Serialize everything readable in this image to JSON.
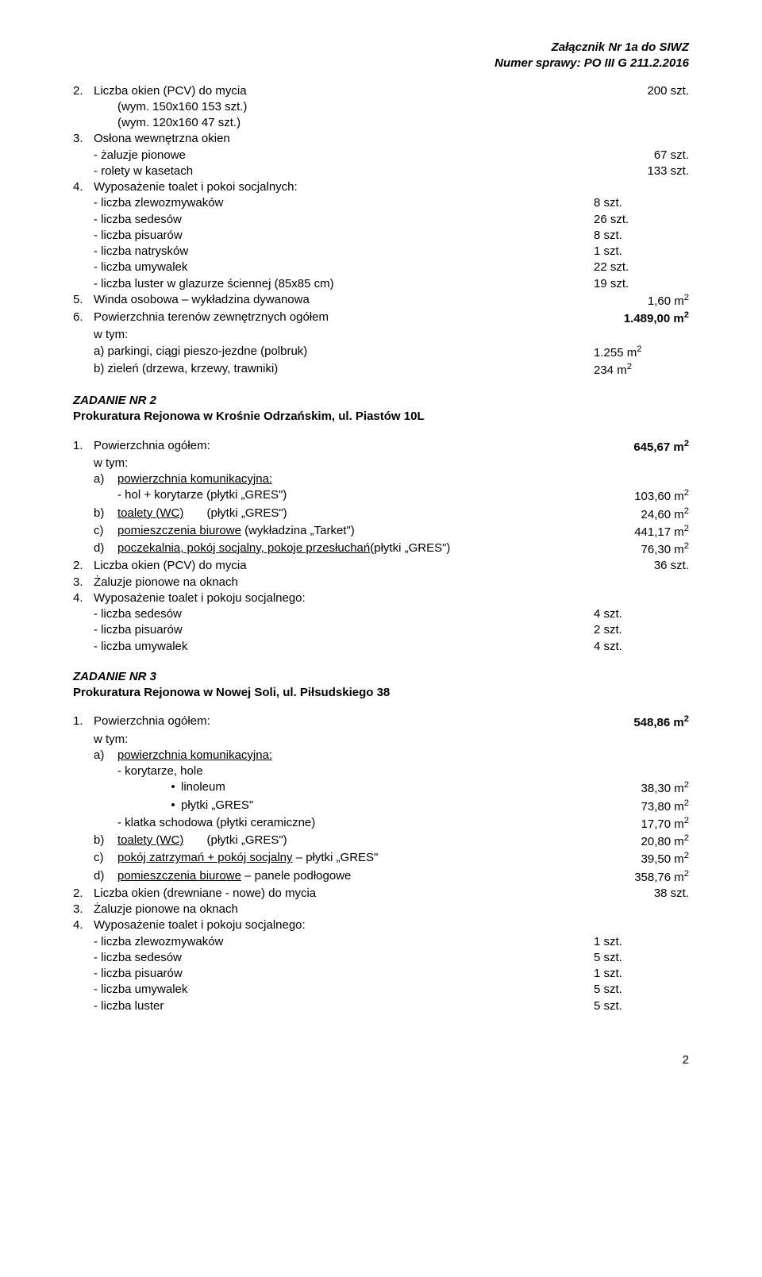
{
  "header": {
    "line1": "Załącznik Nr 1a do SIWZ",
    "line2": "Numer sprawy: PO III G 211.2.2016"
  },
  "s1": {
    "item2_txt": "Liczba okien (PCV) do mycia",
    "item2_val": "200 szt.",
    "item2_sub1": "(wym. 150x160 153 szt.)",
    "item2_sub2": "(wym. 120x160 47 szt.)",
    "item3_txt": "Osłona wewnętrzna okien",
    "item3_a": "- żaluzje pionowe",
    "item3_a_val": "67 szt.",
    "item3_b": "- rolety w kasetach",
    "item3_b_val": "133 szt.",
    "item4_txt": "Wyposażenie toalet i pokoi socjalnych:",
    "item4_rows": [
      [
        "- liczba zlewozmywaków",
        "8 szt."
      ],
      [
        "- liczba sedesów",
        "26 szt."
      ],
      [
        "- liczba pisuarów",
        "8 szt."
      ],
      [
        "- liczba natrysków",
        "1 szt."
      ],
      [
        "- liczba umywalek",
        "22 szt."
      ],
      [
        "- liczba luster w glazurze ściennej (85x85 cm)",
        "19 szt."
      ]
    ],
    "item5_txt": "Winda osobowa – wykładzina dywanowa",
    "item5_val": "1,60 m",
    "item6_txt": "Powierzchnia terenów zewnętrznych ogółem",
    "item6_val": "1.489,00 m",
    "wtym": "w tym:",
    "item6_a": "a) parkingi, ciągi pieszo-jezdne (polbruk)",
    "item6_a_val": "1.255 m",
    "item6_b": "b) zieleń (drzewa, krzewy, trawniki)",
    "item6_b_val": "234 m"
  },
  "z2": {
    "title1": "ZADANIE NR 2",
    "title2": "Prokuratura Rejonowa w Krośnie Odrzańskim, ul. Piastów 10L",
    "item1_txt": "Powierzchnia ogółem:",
    "item1_val": "645,67 m",
    "wtym": "w tym:",
    "a_lbl": "a)",
    "a_txt": "powierzchnia komunikacyjna:",
    "a_row1": "- hol + korytarze (płytki „GRES\")",
    "a_row1_val": "103,60 m",
    "b_lbl": "b)",
    "b_txt_u": "toalety (WC)",
    "b_txt_rest": "       (płytki „GRES\")",
    "b_val": "24,60 m",
    "c_lbl": "c)",
    "c_txt_u": "pomieszczenia biurowe",
    "c_txt_rest": " (wykładzina „Tarket\")",
    "c_val": "441,17 m",
    "d_lbl": "d)",
    "d_txt_u": "poczekalnia, pokój socjalny, pokoje przesłuchań",
    "d_txt_rest": "(płytki „GRES\")",
    "d_val": "76,30 m",
    "item2_txt": "Liczba okien (PCV) do mycia",
    "item2_val": "36 szt.",
    "item3_txt": "Żaluzje pionowe na oknach",
    "item4_txt": "Wyposażenie toalet i pokoju socjalnego:",
    "item4_rows": [
      [
        "- liczba sedesów",
        "4 szt."
      ],
      [
        "- liczba pisuarów",
        "2 szt."
      ],
      [
        "- liczba umywalek",
        "4 szt."
      ]
    ]
  },
  "z3": {
    "title1": "ZADANIE NR 3",
    "title2": "Prokuratura Rejonowa w Nowej Soli, ul. Piłsudskiego 38",
    "item1_txt": "Powierzchnia ogółem:",
    "item1_val": "548,86 m",
    "wtym": "w tym:",
    "a_lbl": "a)",
    "a_txt": "powierzchnia komunikacyjna:",
    "a_row1": "- korytarze, hole",
    "bul1_txt": "linoleum",
    "bul1_val": "38,30 m",
    "bul2_txt": "płytki „GRES\"",
    "bul2_val": "73,80 m",
    "a_row2": "- klatka schodowa (płytki ceramiczne)",
    "a_row2_val": "17,70 m",
    "b_lbl": "b)",
    "b_txt_u": "toalety (WC)",
    "b_txt_rest": "       (płytki „GRES\")",
    "b_val": "20,80 m",
    "c_lbl": "c)",
    "c_txt_u": "pokój zatrzymań + pokój socjalny",
    "c_txt_rest": " – płytki „GRES\"",
    "c_val": "39,50 m",
    "d_lbl": "d)",
    "d_txt_u": "pomieszczenia biurowe",
    "d_txt_rest": " – panele podłogowe",
    "d_val": "358,76 m",
    "item2_txt": "Liczba okien (drewniane - nowe) do mycia",
    "item2_val": "38 szt.",
    "item3_txt": "Żaluzje pionowe na oknach",
    "item4_txt": "Wyposażenie toalet i pokoju socjalnego:",
    "item4_rows": [
      [
        "- liczba zlewozmywaków",
        "1 szt."
      ],
      [
        "- liczba sedesów",
        "5 szt."
      ],
      [
        "- liczba pisuarów",
        "1 szt."
      ],
      [
        "- liczba umywalek",
        "5 szt."
      ],
      [
        "- liczba luster",
        "5 szt."
      ]
    ]
  },
  "pagenum": "2"
}
